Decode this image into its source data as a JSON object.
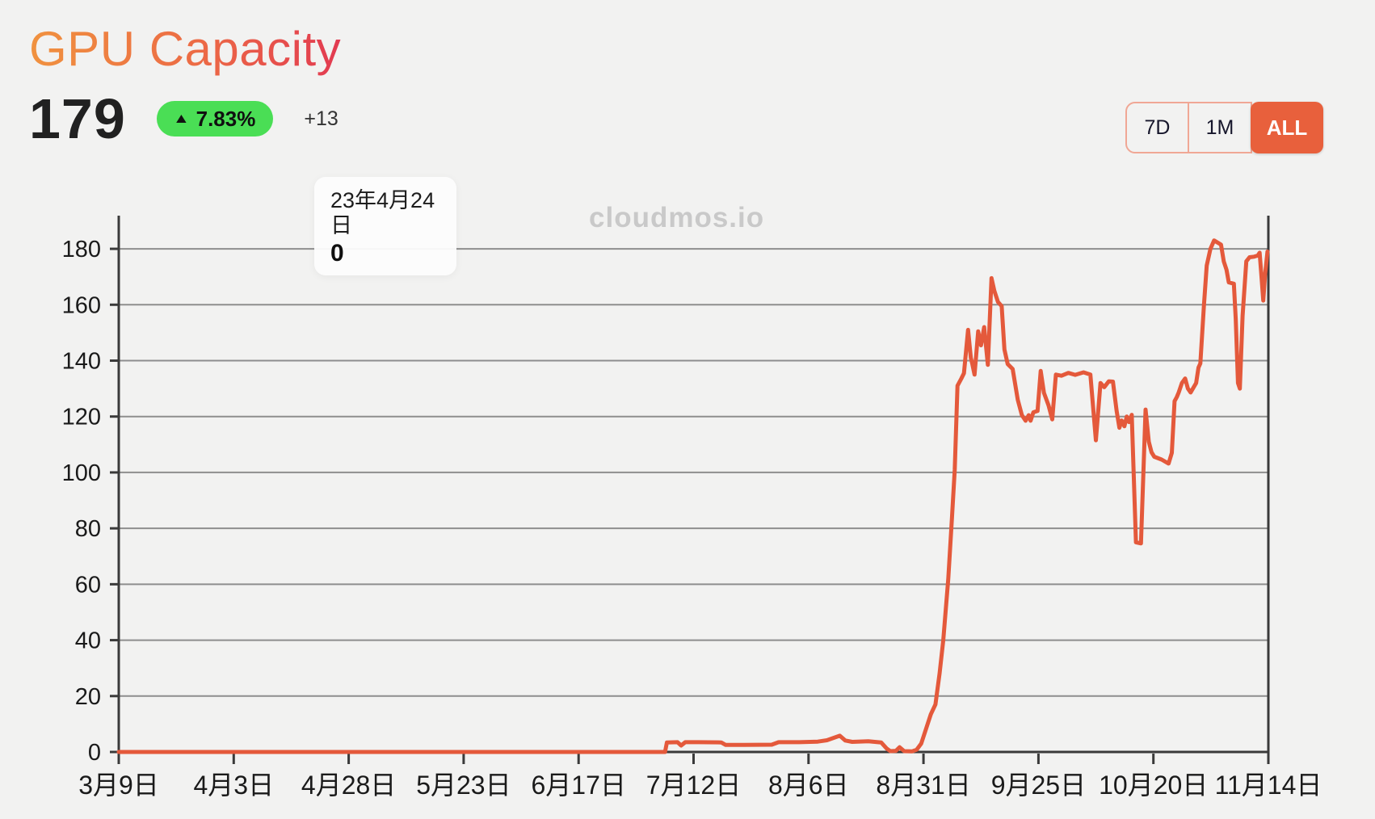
{
  "header": {
    "title": "GPU Capacity",
    "value": "179",
    "change_percent": "7.83%",
    "change_icon": "▲",
    "change_absolute": "+13"
  },
  "range_selector": {
    "options": [
      {
        "label": "7D",
        "active": false
      },
      {
        "label": "1M",
        "active": false
      },
      {
        "label": "ALL",
        "active": true
      }
    ]
  },
  "tooltip": {
    "date": "23年4月24日",
    "value": "0"
  },
  "watermark": "cloudmos.io",
  "colors": {
    "background": "#F2F2F1",
    "line": "#E4593B",
    "accent": "#E8603C",
    "badge_green": "#4ADE55",
    "grid": "#8E8E8E",
    "axis": "#3A3A3A",
    "tick_label": "#1A1A1A",
    "watermark": "#C9C9C9",
    "title_gradient": [
      "#F0923F",
      "#E23A51"
    ]
  },
  "chart_data": {
    "type": "line",
    "title": "GPU Capacity",
    "xlabel": "",
    "ylabel": "",
    "grid": "horizontal",
    "legend": "none",
    "x_unit": "days since first date (3月9日)",
    "xlim_days": [
      0,
      250
    ],
    "ylim": [
      0,
      191
    ],
    "y_ticks": [
      0,
      20,
      40,
      60,
      80,
      100,
      120,
      140,
      160,
      180
    ],
    "x_ticks": {
      "positions_days": [
        0,
        25,
        50,
        75,
        100,
        125,
        150,
        175,
        200,
        225,
        250
      ],
      "labels": [
        "3月9日",
        "4月3日",
        "4月28日",
        "5月23日",
        "6月17日",
        "7月12日",
        "8月6日",
        "8月31日",
        "9月25日",
        "10月20日",
        "11月14日"
      ]
    },
    "series": [
      {
        "name": "GPU Capacity",
        "color": "#E4593B",
        "points": [
          [
            0,
            0
          ],
          [
            30,
            0
          ],
          [
            60,
            0
          ],
          [
            90,
            0
          ],
          [
            110,
            0
          ],
          [
            118.8,
            0
          ],
          [
            119.2,
            3.4
          ],
          [
            121.5,
            3.5
          ],
          [
            122.3,
            2.3
          ],
          [
            123.2,
            3.5
          ],
          [
            126,
            3.5
          ],
          [
            131,
            3.4
          ],
          [
            132,
            2.5
          ],
          [
            136,
            2.5
          ],
          [
            142,
            2.6
          ],
          [
            143.5,
            3.5
          ],
          [
            148,
            3.5
          ],
          [
            152,
            3.7
          ],
          [
            154,
            4.2
          ],
          [
            156.8,
            5.8
          ],
          [
            158,
            4.1
          ],
          [
            159.5,
            3.6
          ],
          [
            163,
            3.8
          ],
          [
            165.8,
            3.4
          ],
          [
            167,
            1.2
          ],
          [
            167.8,
            0.3
          ],
          [
            169,
            0.4
          ],
          [
            169.8,
            1.7
          ],
          [
            170.8,
            0.3
          ],
          [
            172.5,
            0.2
          ],
          [
            173.5,
            0.8
          ],
          [
            174.5,
            3
          ],
          [
            175.7,
            9
          ],
          [
            176.6,
            13.5
          ],
          [
            177.6,
            17
          ],
          [
            178.5,
            28
          ],
          [
            179.3,
            40
          ],
          [
            180.4,
            62
          ],
          [
            181.2,
            84
          ],
          [
            181.8,
            101
          ],
          [
            182.4,
            131
          ],
          [
            183.2,
            133.5
          ],
          [
            183.8,
            135.5
          ],
          [
            184.7,
            151
          ],
          [
            185.3,
            141
          ],
          [
            185.6,
            139
          ],
          [
            186.1,
            135
          ],
          [
            186.9,
            150.5
          ],
          [
            187.5,
            145.5
          ],
          [
            188.2,
            152
          ],
          [
            189,
            138.5
          ],
          [
            189.8,
            169.5
          ],
          [
            190.4,
            165
          ],
          [
            191.2,
            161
          ],
          [
            192,
            159.5
          ],
          [
            192.6,
            144
          ],
          [
            193.3,
            138.8
          ],
          [
            194.4,
            137
          ],
          [
            195.5,
            126
          ],
          [
            196.4,
            120.5
          ],
          [
            197.2,
            118.5
          ],
          [
            197.9,
            120.5
          ],
          [
            198.3,
            118.5
          ],
          [
            198.9,
            121.5
          ],
          [
            199.8,
            122
          ],
          [
            200.5,
            136.3
          ],
          [
            201.2,
            128.5
          ],
          [
            202.2,
            124
          ],
          [
            203,
            119
          ],
          [
            203.8,
            135
          ],
          [
            205,
            134.6
          ],
          [
            206.5,
            135.6
          ],
          [
            208,
            134.9
          ],
          [
            209.8,
            135.8
          ],
          [
            211.3,
            135
          ],
          [
            212.5,
            111.5
          ],
          [
            213.5,
            132
          ],
          [
            214.3,
            130.5
          ],
          [
            215.3,
            132.6
          ],
          [
            216.2,
            132.5
          ],
          [
            217,
            122
          ],
          [
            217.6,
            116
          ],
          [
            218.1,
            118.6
          ],
          [
            218.7,
            116.5
          ],
          [
            219.2,
            120
          ],
          [
            219.7,
            118
          ],
          [
            220.3,
            120.6
          ],
          [
            221.2,
            75
          ],
          [
            222.3,
            74.6
          ],
          [
            223.3,
            122.5
          ],
          [
            224,
            111
          ],
          [
            224.6,
            107.2
          ],
          [
            225.2,
            105.6
          ],
          [
            226.8,
            104.6
          ],
          [
            228.3,
            103.2
          ],
          [
            229,
            107
          ],
          [
            229.6,
            125.5
          ],
          [
            230.1,
            127
          ],
          [
            230.5,
            128.6
          ],
          [
            231.2,
            132
          ],
          [
            231.9,
            133.6
          ],
          [
            232.5,
            130
          ],
          [
            233.1,
            128.6
          ],
          [
            233.8,
            130.6
          ],
          [
            234.3,
            132
          ],
          [
            234.8,
            137.5
          ],
          [
            235.2,
            139
          ],
          [
            236,
            160
          ],
          [
            236.6,
            174
          ],
          [
            237.4,
            180
          ],
          [
            238.2,
            183
          ],
          [
            239.7,
            181.5
          ],
          [
            240.3,
            175.5
          ],
          [
            240.9,
            172.5
          ],
          [
            241.4,
            168
          ],
          [
            242.5,
            167.5
          ],
          [
            242.9,
            155
          ],
          [
            243.4,
            132
          ],
          [
            243.8,
            130
          ],
          [
            244.4,
            156
          ],
          [
            245.2,
            175.5
          ],
          [
            245.9,
            177
          ],
          [
            246.9,
            177.2
          ],
          [
            247.7,
            177.6
          ],
          [
            248.1,
            178.6
          ],
          [
            248.5,
            170
          ],
          [
            248.9,
            161.5
          ],
          [
            249.3,
            171
          ],
          [
            249.8,
            179
          ]
        ]
      }
    ]
  }
}
